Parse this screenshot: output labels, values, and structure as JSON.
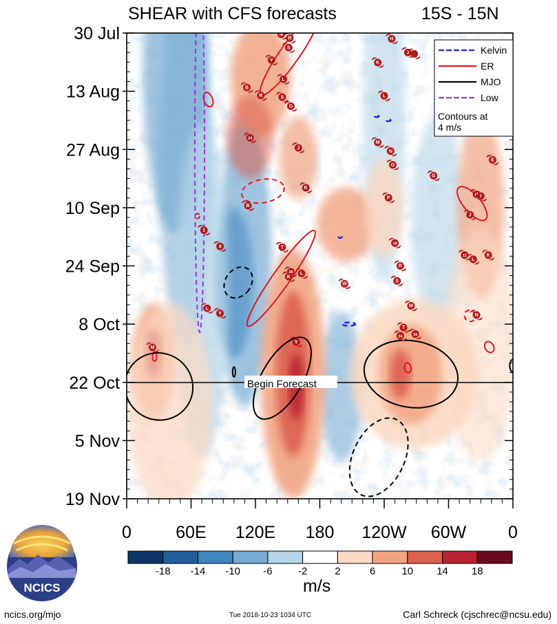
{
  "chart_data": {
    "type": "heatmap",
    "title": "SHEAR with CFS forecasts",
    "region": "15S - 15N",
    "x_ticks": [
      "0",
      "60E",
      "120E",
      "180",
      "120W",
      "60W",
      "0"
    ],
    "y_ticks": [
      "30 Jul",
      "13 Aug",
      "27 Aug",
      "10 Sep",
      "24 Sep",
      "8 Oct",
      "22 Oct",
      "5 Nov",
      "19 Nov"
    ],
    "forecast_label": "Begin Forecast",
    "units": "m/s",
    "colorbar_labels": [
      "-18",
      "-14",
      "-10",
      "-6",
      "-2",
      "2",
      "6",
      "10",
      "14",
      "18"
    ],
    "colorbar_colors": [
      "#0d3566",
      "#215e9b",
      "#3f85c0",
      "#78acd3",
      "#b5d5e8",
      "#ffffff",
      "#fcd9c2",
      "#f2a583",
      "#dc6150",
      "#b82232",
      "#6a0a1e"
    ],
    "legend": [
      {
        "label": "Kelvin",
        "color": "#1e24d6",
        "style": "dashed"
      },
      {
        "label": "ER",
        "color": "#e0171f",
        "style": "solid"
      },
      {
        "label": "MJO",
        "color": "#000000",
        "style": "solid"
      },
      {
        "label": "Low",
        "color": "#9b34d8",
        "style": "dashed"
      }
    ],
    "contour_note": "Contours at\n4 m/s",
    "storms": [
      {
        "lon": 144,
        "day": 0.3,
        "label": "N"
      },
      {
        "lon": 152,
        "day": 1.2,
        "label": "R"
      },
      {
        "lon": 151,
        "day": 3.5,
        "label": "S"
      },
      {
        "lon": 247,
        "day": 1.4,
        "label": "H"
      },
      {
        "lon": 262,
        "day": 4.7,
        "label": "J"
      },
      {
        "lon": 268,
        "day": 5.0,
        "label": ""
      },
      {
        "lon": 234,
        "day": 7.1,
        "label": "K"
      },
      {
        "lon": 135,
        "day": 6.5,
        "label": "Y"
      },
      {
        "lon": 146,
        "day": 11.1,
        "label": "L"
      },
      {
        "lon": 112,
        "day": 13.1,
        "label": "B"
      },
      {
        "lon": 125,
        "day": 15.0,
        "label": "R"
      },
      {
        "lon": 145,
        "day": 15.4,
        "label": "S"
      },
      {
        "lon": 153,
        "day": 17.6,
        "label": "G"
      },
      {
        "lon": 240,
        "day": 15.1,
        "label": "L"
      },
      {
        "lon": 115,
        "day": 25.2,
        "label": "24"
      },
      {
        "lon": 160,
        "day": 27.6,
        "label": "J"
      },
      {
        "lon": 234,
        "day": 26.3,
        "label": "M"
      },
      {
        "lon": 246,
        "day": 28.4,
        "label": "N"
      },
      {
        "lon": 248,
        "day": 31.7,
        "label": "O"
      },
      {
        "lon": 286,
        "day": 34.3,
        "label": "G"
      },
      {
        "lon": 341,
        "day": 30.5,
        "label": "E"
      },
      {
        "lon": 167,
        "day": 37.2,
        "label": "K"
      },
      {
        "lon": 244,
        "day": 39.6,
        "label": "P"
      },
      {
        "lon": 113,
        "day": 41.5,
        "label": "B"
      },
      {
        "lon": 326,
        "day": 38.8,
        "label": "H"
      },
      {
        "lon": 330,
        "day": 39.2,
        "label": "I"
      },
      {
        "lon": 320,
        "day": 43.7,
        "label": "J"
      },
      {
        "lon": 72,
        "day": 47.4,
        "label": "1"
      },
      {
        "lon": 87,
        "day": 51.3,
        "label": "4"
      },
      {
        "lon": 145,
        "day": 51.5,
        "label": "T"
      },
      {
        "lon": 250,
        "day": 50.5,
        "label": "19"
      },
      {
        "lon": 315,
        "day": 53.4,
        "label": "11"
      },
      {
        "lon": 323,
        "day": 54.4,
        "label": "L"
      },
      {
        "lon": 337,
        "day": 53.4,
        "label": "K"
      },
      {
        "lon": 255,
        "day": 56.0,
        "label": "R"
      },
      {
        "lon": 153,
        "day": 57.4,
        "label": "29"
      },
      {
        "lon": 163,
        "day": 57.8,
        "label": "L"
      },
      {
        "lon": 151,
        "day": 58.6,
        "label": "K"
      },
      {
        "lon": 252,
        "day": 59.6,
        "label": "S"
      },
      {
        "lon": 203,
        "day": 60.3,
        "label": "W"
      },
      {
        "lon": 265,
        "day": 65.6,
        "label": "M"
      },
      {
        "lon": 75,
        "day": 66.2,
        "label": "L"
      },
      {
        "lon": 87,
        "day": 67.4,
        "label": "Y"
      },
      {
        "lon": 326,
        "day": 67.8,
        "label": "N"
      },
      {
        "lon": 258,
        "day": 70.8,
        "label": "T"
      },
      {
        "lon": 255,
        "day": 72.8,
        "label": "24"
      },
      {
        "lon": 269,
        "day": 72.4,
        "label": "30"
      },
      {
        "lon": 158,
        "day": 74.3,
        "label": "Y"
      },
      {
        "lon": 24,
        "day": 75.6,
        "label": "M"
      }
    ]
  },
  "footer": {
    "left": "ncics.org/mjo",
    "center": "Tue 2018-10-23 1034 UTC",
    "right": "Carl Schreck (cjschrec@ncsu.edu)",
    "logo_text": "NCICS"
  }
}
